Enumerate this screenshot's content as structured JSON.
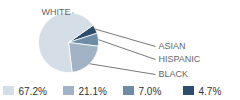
{
  "chart_data": {
    "type": "pie",
    "categories": [
      "WHITE",
      "BLACK",
      "HISPANIC",
      "ASIAN"
    ],
    "values": [
      67.2,
      21.1,
      7.0,
      4.7
    ],
    "value_labels": [
      "67.2%",
      "21.1%",
      "7.0%",
      "4.7%"
    ],
    "colors": [
      "#d5dde6",
      "#a3b3c6",
      "#6f8ca6",
      "#2e4d6b"
    ],
    "legend": "bottom"
  }
}
